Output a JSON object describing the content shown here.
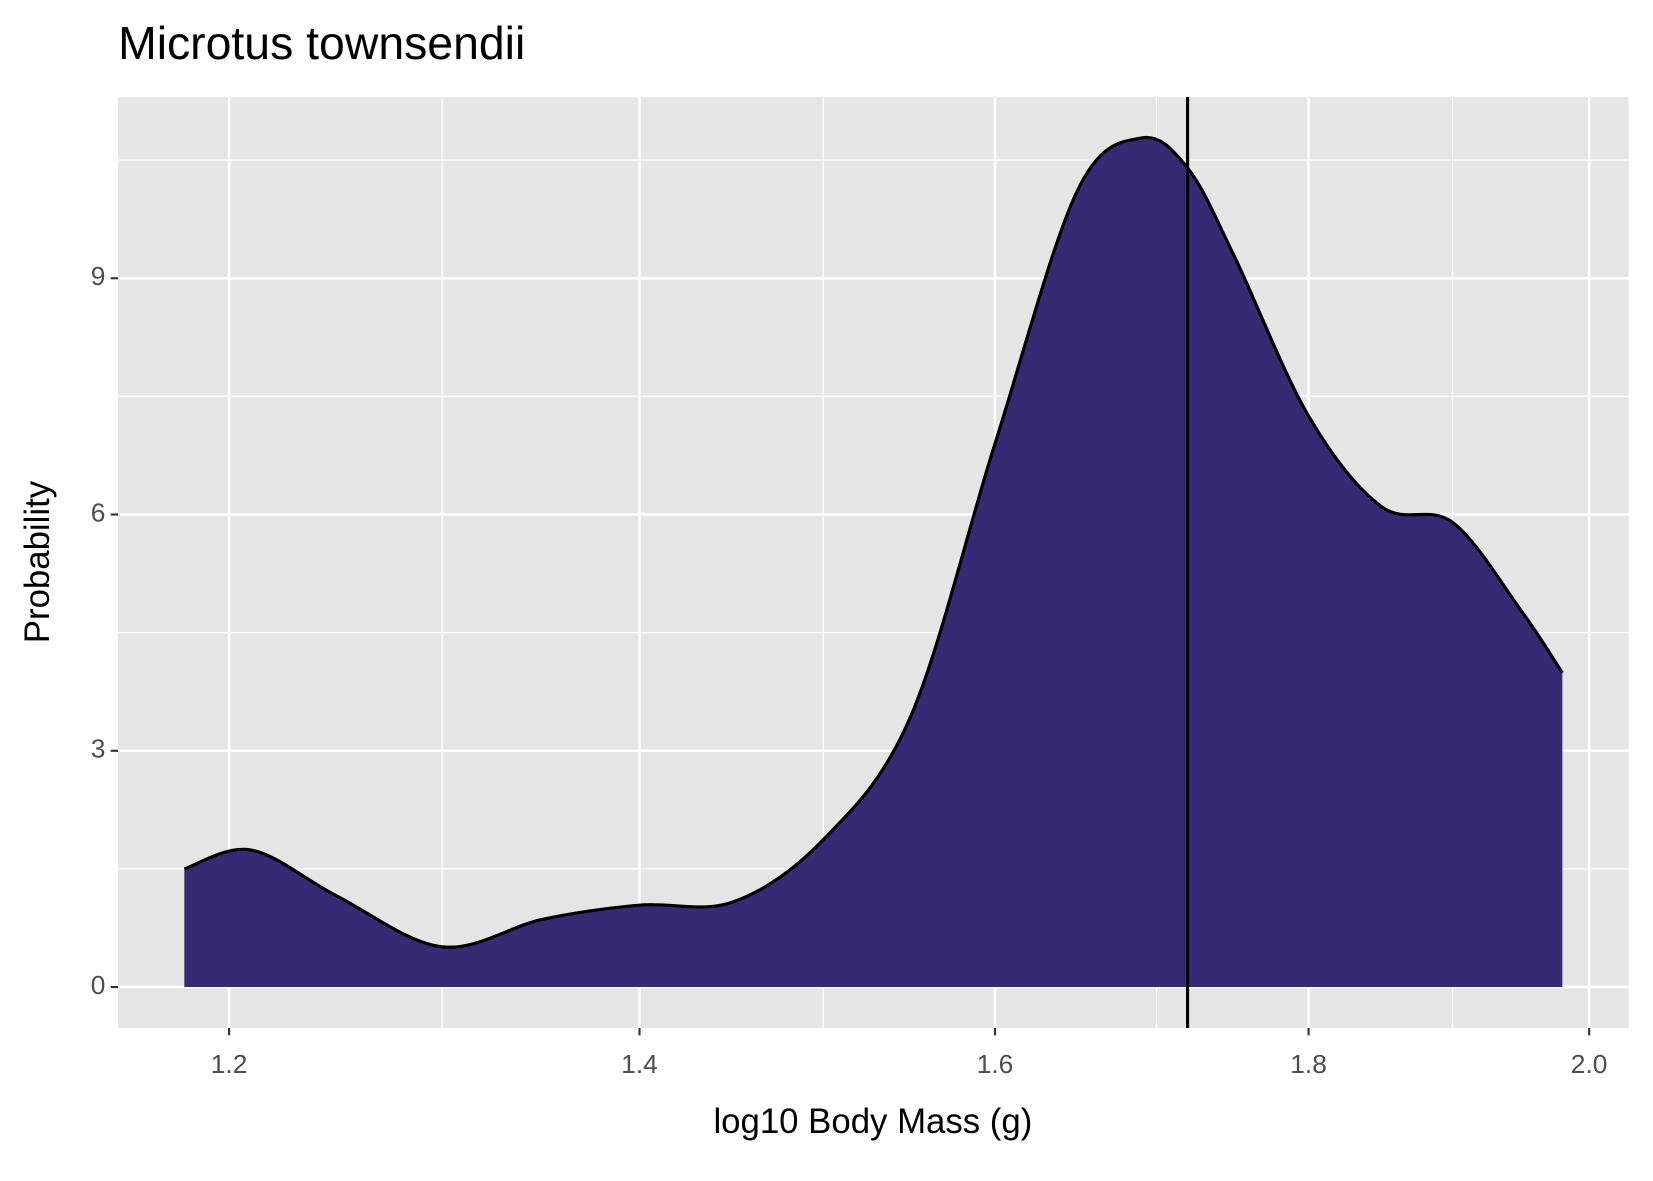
{
  "chart_data": {
    "type": "area",
    "title": "Microtus townsendii",
    "x_label": "log10 Body Mass (g)",
    "y_label": "Probability",
    "x": [
      1.18,
      1.21,
      1.25,
      1.3,
      1.35,
      1.4,
      1.45,
      1.5,
      1.55,
      1.6,
      1.65,
      1.69,
      1.72,
      1.75,
      1.8,
      1.85,
      1.9,
      1.95,
      1.98
    ],
    "values": [
      1.5,
      1.74,
      1.15,
      0.51,
      0.86,
      1.04,
      1.08,
      1.87,
      3.43,
      6.9,
      10.1,
      10.78,
      10.4,
      9.3,
      7.25,
      6.1,
      5.9,
      4.77,
      3.99
    ],
    "color": "#372a75",
    "vline": 1.72,
    "xlim": [
      1.151,
      2.03
    ],
    "ylim": [
      -0.52,
      11.3
    ],
    "xticks": [
      1.2,
      1.4,
      1.6,
      1.8,
      {
        "value": 2,
        "label": "2.0"
      }
    ],
    "yticks": [
      0,
      3,
      6,
      9
    ],
    "log_scale_x": true,
    "grid": true
  }
}
